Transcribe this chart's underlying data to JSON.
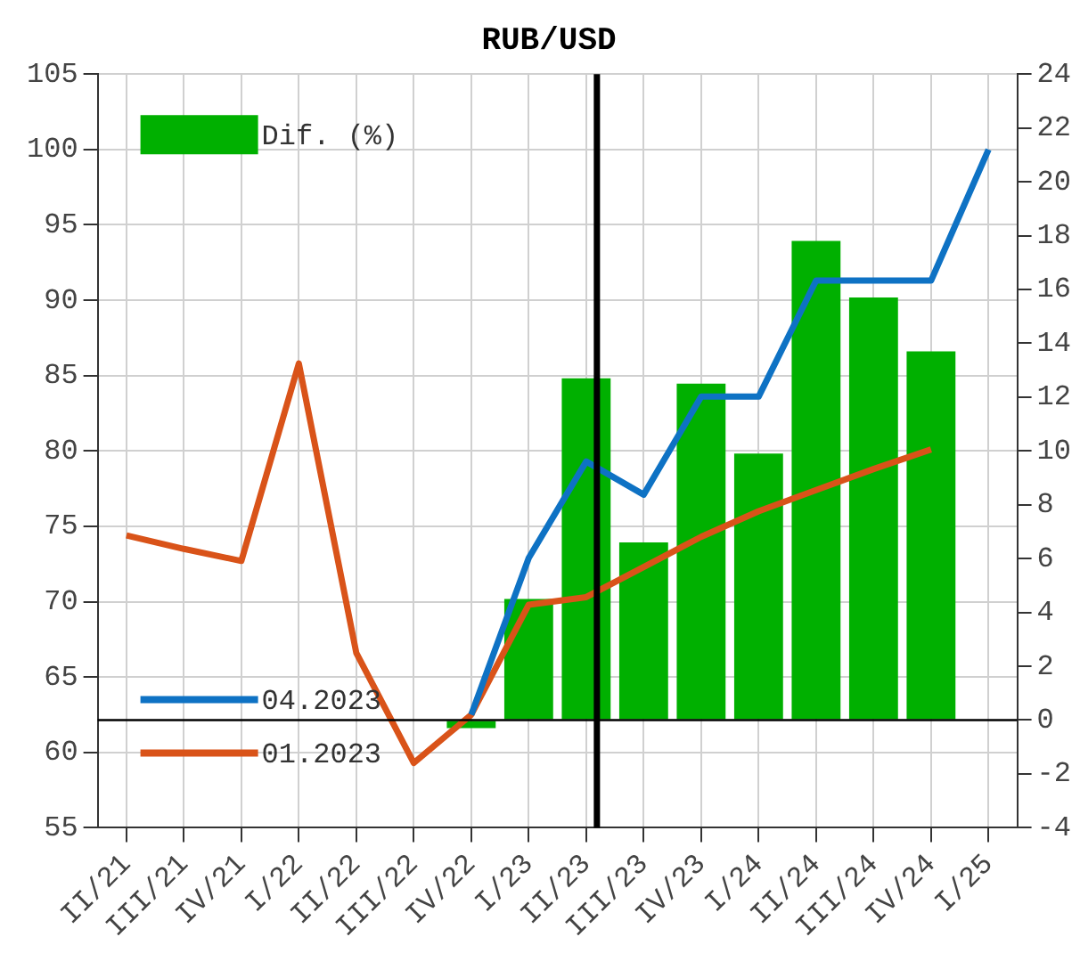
{
  "chart_data": {
    "type": "bar",
    "title": "RUB/USD",
    "categories": [
      "II/21",
      "III/21",
      "IV/21",
      "I/22",
      "II/22",
      "III/22",
      "IV/22",
      "I/23",
      "II/23",
      "III/23",
      "IV/23",
      "I/24",
      "II/24",
      "III/24",
      "IV/24",
      "I/25"
    ],
    "series": [
      {
        "name": "Dif. (%)",
        "axis": "y2",
        "color": "#00b000",
        "values": [
          null,
          null,
          null,
          null,
          null,
          null,
          -0.3,
          4.5,
          12.7,
          6.6,
          12.5,
          9.9,
          17.8,
          15.7,
          13.7,
          null
        ]
      },
      {
        "name": "04.2023",
        "type": "line",
        "color": "#0e72c4",
        "values": [
          null,
          null,
          null,
          null,
          null,
          null,
          62.5,
          72.9,
          79.3,
          77.1,
          83.6,
          83.6,
          91.3,
          91.3,
          91.3,
          100
        ]
      },
      {
        "name": "01.2023",
        "type": "line",
        "color": "#d95319",
        "values": [
          74.4,
          73.5,
          72.7,
          85.8,
          66.6,
          59.3,
          62.5,
          69.8,
          70.3,
          72.3,
          74.3,
          76.0,
          77.4,
          78.8,
          80.1,
          null
        ]
      }
    ],
    "ylim": [
      55,
      105
    ],
    "yticks": [
      55,
      60,
      65,
      70,
      75,
      80,
      85,
      90,
      95,
      100,
      105
    ],
    "y2lim": [
      -4,
      24
    ],
    "y2ticks": [
      -4,
      -2,
      0,
      2,
      4,
      6,
      8,
      10,
      12,
      14,
      16,
      18,
      20,
      22,
      24
    ],
    "ref_lines": [
      {
        "axis": "x",
        "value": "II/23",
        "color": "#000000"
      },
      {
        "axis": "y2",
        "value": 0,
        "color": "#000000"
      }
    ],
    "grid": true,
    "legend": "left",
    "marker": "none",
    "line_style": "solid"
  }
}
